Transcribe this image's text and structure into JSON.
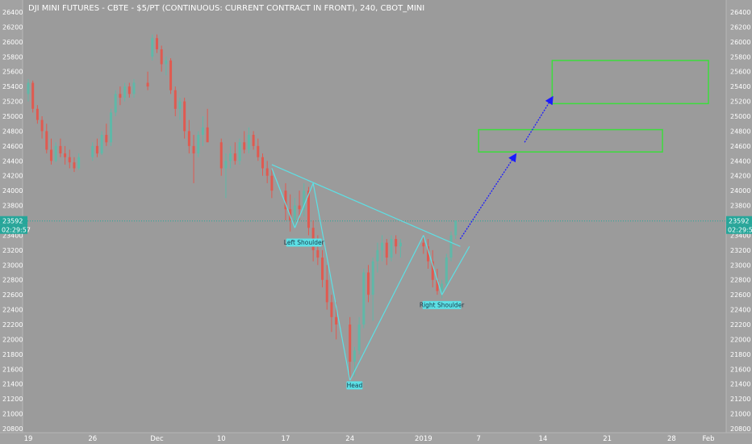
{
  "chart_data": {
    "type": "candlestick",
    "title": "DJI MINI FUTURES - CBTE - $5/PT (CONTINUOUS: CURRENT CONTRACT IN FRONT), 240, CBOT_MINI",
    "ylim": [
      20800,
      26400
    ],
    "yticks": [
      20800,
      21000,
      21200,
      21400,
      21600,
      21800,
      22000,
      22200,
      22400,
      22600,
      22800,
      23000,
      23200,
      23400,
      23600,
      23800,
      24000,
      24200,
      24400,
      24600,
      24800,
      25000,
      25200,
      25400,
      25600,
      25800,
      26000,
      26200,
      26400
    ],
    "xlim": [
      "2018-11-19",
      "2019-02-01"
    ],
    "xticks": [
      {
        "date": "2018-11-19",
        "label": "19"
      },
      {
        "date": "2018-11-26",
        "label": "26"
      },
      {
        "date": "2018-12-03",
        "label": "Dec"
      },
      {
        "date": "2018-12-10",
        "label": "10"
      },
      {
        "date": "2018-12-17",
        "label": "17"
      },
      {
        "date": "2018-12-24",
        "label": "24"
      },
      {
        "date": "2019-01-01",
        "label": "2019"
      },
      {
        "date": "2019-01-07",
        "label": "7"
      },
      {
        "date": "2019-01-14",
        "label": "14"
      },
      {
        "date": "2019-01-21",
        "label": "21"
      },
      {
        "date": "2019-01-28",
        "label": "28"
      },
      {
        "date": "2019-02-01",
        "label": "Feb"
      }
    ],
    "current_price": 23592,
    "countdown": "02:29:57",
    "candles": [
      [
        "2018-11-19",
        25300,
        25500,
        25200,
        25450
      ],
      [
        "2018-11-19.5",
        25450,
        25480,
        25050,
        25100
      ],
      [
        "2018-11-20",
        25100,
        25150,
        24900,
        24950
      ],
      [
        "2018-11-20.5",
        24950,
        25000,
        24700,
        24800
      ],
      [
        "2018-11-21",
        24800,
        24900,
        24500,
        24550
      ],
      [
        "2018-11-21.5",
        24550,
        24700,
        24350,
        24400
      ],
      [
        "2018-11-22",
        24400,
        24650,
        24380,
        24600
      ],
      [
        "2018-11-22.5",
        24600,
        24700,
        24450,
        24500
      ],
      [
        "2018-11-23",
        24500,
        24600,
        24350,
        24450
      ],
      [
        "2018-11-23.5",
        24450,
        24550,
        24300,
        24380
      ],
      [
        "2018-11-24",
        24380,
        24450,
        24250,
        24300
      ],
      [
        "2018-11-24.5",
        24300,
        24500,
        24280,
        24450
      ],
      [
        "2018-11-26",
        24450,
        24650,
        24400,
        24600
      ],
      [
        "2018-11-26.5",
        24600,
        24700,
        24450,
        24500
      ],
      [
        "2018-11-27",
        24500,
        24800,
        24480,
        24750
      ],
      [
        "2018-11-27.5",
        24750,
        24900,
        24600,
        24650
      ],
      [
        "2018-11-28",
        24650,
        25100,
        24600,
        25050
      ],
      [
        "2018-11-28.5",
        25050,
        25350,
        25000,
        25300
      ],
      [
        "2018-11-29",
        25300,
        25400,
        25150,
        25250
      ],
      [
        "2018-11-29.5",
        25250,
        25450,
        25200,
        25400
      ],
      [
        "2018-11-30",
        25400,
        25450,
        25250,
        25300
      ],
      [
        "2018-11-30.5",
        25300,
        25500,
        25250,
        25450
      ],
      [
        "2018-12-02",
        25450,
        25600,
        25350,
        25400
      ],
      [
        "2018-12-02.5",
        25800,
        26100,
        25750,
        26050
      ],
      [
        "2018-12-03",
        26050,
        26100,
        25850,
        25900
      ],
      [
        "2018-12-03.5",
        25900,
        25950,
        25600,
        25700
      ],
      [
        "2018-12-04",
        25700,
        25800,
        25550,
        25750
      ],
      [
        "2018-12-04.5",
        25750,
        25780,
        25300,
        25350
      ],
      [
        "2018-12-05",
        25350,
        25400,
        25000,
        25100
      ],
      [
        "2018-12-05.5",
        25100,
        25250,
        24950,
        25200
      ],
      [
        "2018-12-06",
        25200,
        25250,
        24700,
        24800
      ],
      [
        "2018-12-06.5",
        24800,
        24950,
        24500,
        24600
      ],
      [
        "2018-12-07",
        24600,
        24750,
        24100,
        24500
      ],
      [
        "2018-12-07.5",
        24500,
        24800,
        24450,
        24750
      ],
      [
        "2018-12-08",
        24750,
        25000,
        24600,
        24850
      ],
      [
        "2018-12-08.5",
        24850,
        25100,
        24700,
        24650
      ],
      [
        "2018-12-10",
        24650,
        24700,
        24200,
        24300
      ],
      [
        "2018-12-10.5",
        24300,
        24500,
        23900,
        24400
      ],
      [
        "2018-12-11",
        24400,
        24600,
        24300,
        24500
      ],
      [
        "2018-12-11.5",
        24500,
        24650,
        24350,
        24400
      ],
      [
        "2018-12-12",
        24400,
        24700,
        24350,
        24650
      ],
      [
        "2018-12-12.5",
        24650,
        24800,
        24500,
        24550
      ],
      [
        "2018-12-13",
        24550,
        24850,
        24500,
        24750
      ],
      [
        "2018-12-13.5",
        24750,
        24800,
        24550,
        24600
      ],
      [
        "2018-12-14",
        24600,
        24700,
        24400,
        24450
      ],
      [
        "2018-12-14.5",
        24450,
        24500,
        24200,
        24300
      ],
      [
        "2018-12-15",
        24300,
        24400,
        24100,
        24200
      ],
      [
        "2018-12-15.5",
        24200,
        24300,
        23900,
        24000
      ],
      [
        "2018-12-17",
        24000,
        24100,
        23600,
        23750
      ],
      [
        "2018-12-17.5",
        23750,
        23950,
        23450,
        23600
      ],
      [
        "2018-12-18",
        23600,
        23900,
        23500,
        23800
      ],
      [
        "2018-12-18.5",
        23800,
        24000,
        23600,
        23750
      ],
      [
        "2018-12-19",
        23750,
        24100,
        23650,
        24000
      ],
      [
        "2018-12-19.5",
        24000,
        24050,
        23400,
        23500
      ],
      [
        "2018-12-20",
        23500,
        23600,
        23050,
        23200
      ],
      [
        "2018-12-20.5",
        23200,
        23400,
        23000,
        23100
      ],
      [
        "2018-12-21",
        23100,
        23200,
        22700,
        22800
      ],
      [
        "2018-12-21.5",
        22800,
        23000,
        22400,
        22500
      ],
      [
        "2018-12-22",
        22500,
        22600,
        22100,
        22300
      ],
      [
        "2018-12-22.5",
        22300,
        22500,
        22000,
        22200
      ],
      [
        "2018-12-24",
        22200,
        22300,
        21450,
        21700
      ],
      [
        "2018-12-24.5",
        21700,
        21900,
        21500,
        21850
      ],
      [
        "2018-12-25",
        21850,
        22300,
        21800,
        22200
      ],
      [
        "2018-12-25.5",
        22200,
        22950,
        22150,
        22900
      ],
      [
        "2018-12-26",
        22900,
        23000,
        22500,
        22600
      ],
      [
        "2018-12-26.5",
        22600,
        23100,
        22250,
        23050
      ],
      [
        "2018-12-27",
        23050,
        23300,
        22900,
        23200
      ],
      [
        "2018-12-27.5",
        23200,
        23400,
        23050,
        23300
      ],
      [
        "2018-12-28",
        23300,
        23350,
        23000,
        23100
      ],
      [
        "2018-12-28.5",
        23100,
        23400,
        23050,
        23350
      ],
      [
        "2018-12-29",
        23350,
        23400,
        23150,
        23250
      ],
      [
        "2018-12-29.5",
        23250,
        23350,
        23100,
        23300
      ],
      [
        "2019-01-01",
        23300,
        23400,
        23150,
        23250
      ],
      [
        "2019-01-01.5",
        23250,
        23350,
        22950,
        23050
      ],
      [
        "2019-01-02",
        23050,
        23200,
        22700,
        22800
      ],
      [
        "2019-01-02.5",
        22800,
        22950,
        22600,
        22650
      ],
      [
        "2019-01-03",
        22650,
        22800,
        22550,
        22750
      ],
      [
        "2019-01-03.5",
        22750,
        23150,
        22700,
        23100
      ],
      [
        "2019-01-04",
        23100,
        23450,
        23050,
        23400
      ],
      [
        "2019-01-04.5",
        23400,
        23600,
        23350,
        23592
      ]
    ]
  },
  "annotations": {
    "left_shoulder": "Left Shoulder",
    "head": "Head",
    "right_shoulder": "Right Shoulder"
  },
  "colors": {
    "background": "#9b9b9b",
    "up": "#5fb8a8",
    "down": "#e05a50",
    "pattern": "#5ce1e6",
    "target_box": "#3ddc3d",
    "arrow": "#1a1aff",
    "price_label": "#26a69a"
  }
}
